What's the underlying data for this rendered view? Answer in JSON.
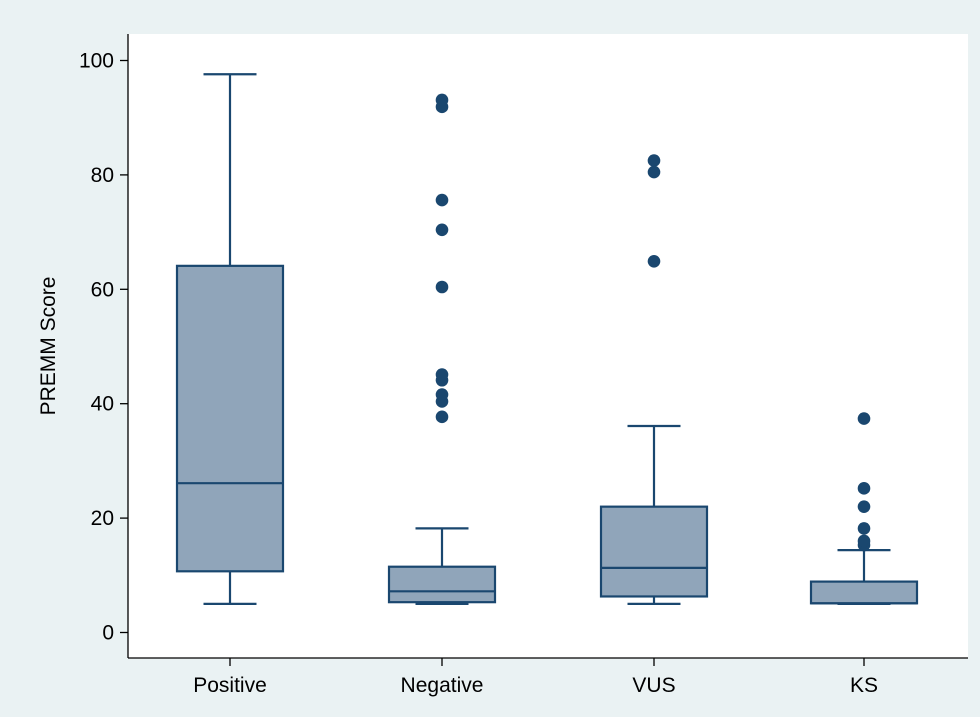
{
  "chart_data": {
    "type": "box",
    "title": "",
    "xlabel": "",
    "ylabel": "PREMM Score",
    "ylim": [
      0,
      100
    ],
    "yticks": [
      0,
      20,
      40,
      60,
      80,
      100
    ],
    "grid": false,
    "legend": "none",
    "categories": [
      "Positive",
      "Negative",
      "VUS",
      "KS"
    ],
    "boxes": [
      {
        "category": "Positive",
        "whisker_low": 5,
        "q1": 10.7,
        "median": 26.1,
        "q3": 64.1,
        "whisker_high": 97.6,
        "outliers": []
      },
      {
        "category": "Negative",
        "whisker_low": 5,
        "q1": 5.3,
        "median": 7.2,
        "q3": 11.5,
        "whisker_high": 18.2,
        "outliers": [
          37.7,
          40.4,
          41.6,
          44.1,
          45.1,
          60.4,
          70.4,
          75.6,
          91.9,
          93.1
        ]
      },
      {
        "category": "VUS",
        "whisker_low": 5,
        "q1": 6.3,
        "median": 11.3,
        "q3": 22.0,
        "whisker_high": 36.1,
        "outliers": [
          64.9,
          80.5,
          82.5
        ]
      },
      {
        "category": "KS",
        "whisker_low": 5,
        "q1": 5.1,
        "median": 5.1,
        "q3": 8.9,
        "whisker_high": 14.4,
        "outliers": [
          15.3,
          16.0,
          18.2,
          22.0,
          25.2,
          37.4
        ]
      }
    ],
    "colors": {
      "outer_background": "#eaf2f3",
      "plot_background": "#ffffff",
      "box_fill": "#90a5ba",
      "box_stroke": "#1a476f",
      "outlier": "#1a476f"
    }
  }
}
